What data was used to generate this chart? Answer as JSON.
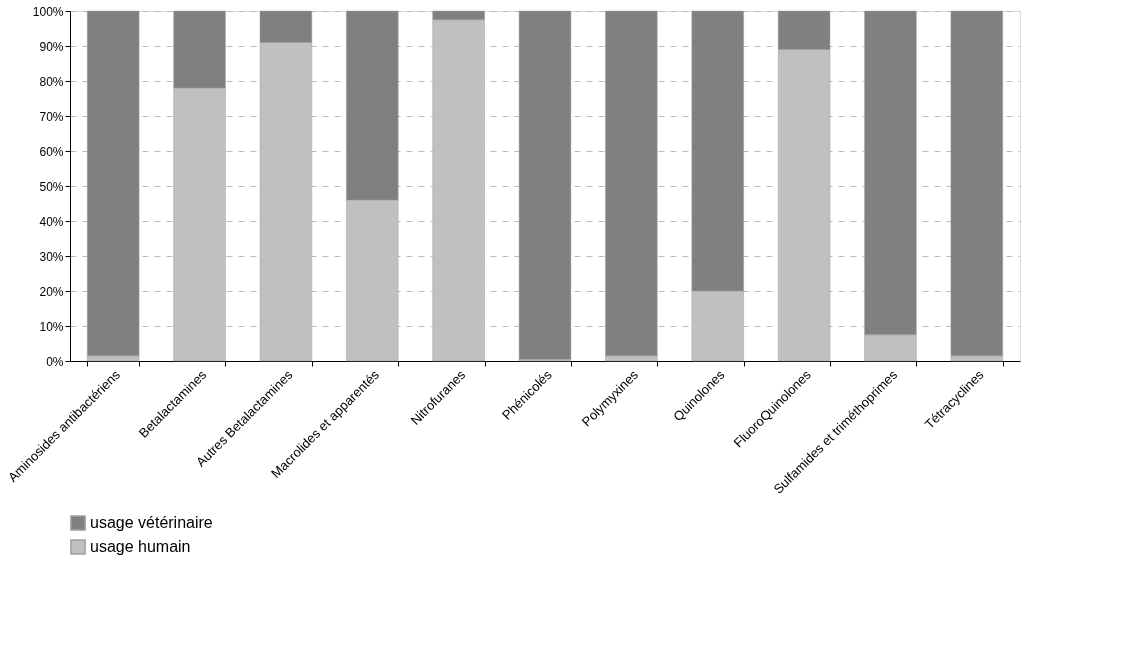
{
  "chart_data": {
    "type": "bar",
    "stacked": true,
    "categories": [
      "Aminosides antibactériens",
      "Betalactamines",
      "Autres Betalactamines",
      "Macrolides et apparentés",
      "Nitrofuranes",
      "Phénicolés",
      "Polymyxines",
      "Quinolones",
      "FluoroQuinolones",
      "Sulfamides et triméthoprimes",
      "Tétracyclines"
    ],
    "series": [
      {
        "name": "usage humain",
        "color": "#c0c0c0",
        "values": [
          1.5,
          78,
          91,
          46,
          97.5,
          0.5,
          1.5,
          20,
          89,
          7.5,
          1.5
        ]
      },
      {
        "name": "usage vétérinaire",
        "color": "#808080",
        "values": [
          98.5,
          22,
          9,
          54,
          2.5,
          99.5,
          98.5,
          80,
          11,
          92.5,
          98.5
        ]
      }
    ],
    "ylim": [
      0,
      100
    ],
    "yticks": [
      {
        "value": 0,
        "label": "0%"
      },
      {
        "value": 10,
        "label": "10%"
      },
      {
        "value": 20,
        "label": "20%"
      },
      {
        "value": 30,
        "label": "30%"
      },
      {
        "value": 40,
        "label": "40%"
      },
      {
        "value": 50,
        "label": "50%"
      },
      {
        "value": 60,
        "label": "60%"
      },
      {
        "value": 70,
        "label": "70%"
      },
      {
        "value": 80,
        "label": "80%"
      },
      {
        "value": 90,
        "label": "90%"
      },
      {
        "value": 100,
        "label": "100%"
      }
    ],
    "grid": "y",
    "legend": "bottom"
  }
}
